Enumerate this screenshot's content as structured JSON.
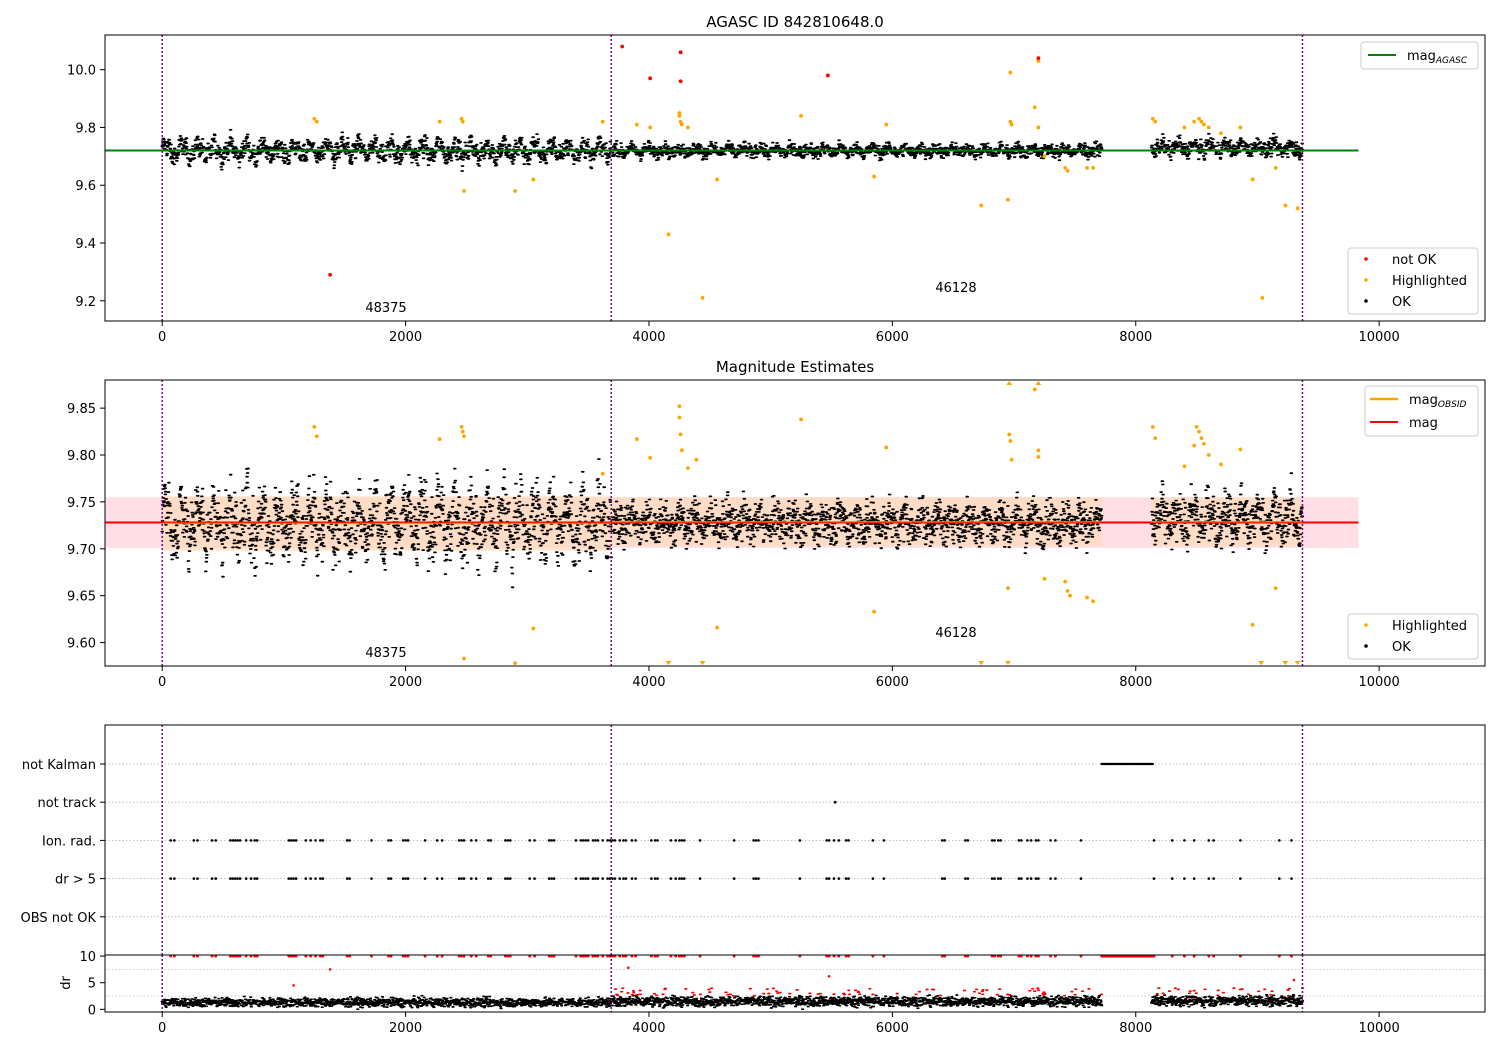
{
  "figure": {
    "x_ticks": [
      0,
      2000,
      4000,
      6000,
      8000,
      10000
    ],
    "x_range": [
      -470,
      10870
    ],
    "obsid_boundaries": [
      0,
      3690,
      9370
    ],
    "colors": {
      "ok": "#000000",
      "highlighted": "#ffa500",
      "not_ok": "#ff0000",
      "agasc_line": "#008000",
      "obsid_line": "#ffa500",
      "mag_line": "#ff0000",
      "obsid_band": "#ffdab9",
      "mag_band": "#ffc0cb",
      "boundary": "#800080"
    }
  },
  "chart_data": [
    {
      "type": "scatter",
      "title": "AGASC ID 842810648.0",
      "xlabel": "",
      "ylabel": "",
      "ylim": [
        9.13,
        10.12
      ],
      "y_ticks": [
        9.2,
        9.4,
        9.6,
        9.8,
        10.0
      ],
      "mag_agasc": 9.72,
      "mag_agasc_xrange": [
        -470,
        9830
      ],
      "obsid_labels": [
        {
          "text": "48375",
          "x": 1840,
          "y": 9.15
        },
        {
          "text": "46128",
          "x": 6550,
          "y": 9.22
        }
      ],
      "legends": [
        {
          "position": "top-right",
          "items": [
            {
              "label": "mag",
              "sub": "AGASC",
              "marker": "line",
              "color": "#008000"
            }
          ]
        },
        {
          "position": "bottom-right",
          "items": [
            {
              "label": "not OK",
              "marker": "dot",
              "color": "#ff0000"
            },
            {
              "label": "Highlighted",
              "marker": "dot",
              "color": "#ffa500"
            },
            {
              "label": "OK",
              "marker": "dot",
              "color": "#000000"
            }
          ]
        }
      ],
      "ok_segments": [
        {
          "x": [
            0,
            3690
          ],
          "mean": 9.72,
          "amp": 0.035,
          "spread": 0.03
        },
        {
          "x": [
            3700,
            7720
          ],
          "mean": 9.72,
          "amp": 0.015,
          "spread": 0.02
        },
        {
          "x": [
            8130,
            9370
          ],
          "mean": 9.73,
          "amp": 0.02,
          "spread": 0.025
        }
      ],
      "highlighted_points": [
        [
          1250,
          9.83
        ],
        [
          1270,
          9.82
        ],
        [
          2280,
          9.82
        ],
        [
          2460,
          9.83
        ],
        [
          2470,
          9.82
        ],
        [
          2480,
          9.58
        ],
        [
          2900,
          9.58
        ],
        [
          3050,
          9.62
        ],
        [
          3620,
          9.82
        ],
        [
          3900,
          9.81
        ],
        [
          4010,
          9.8
        ],
        [
          4160,
          9.43
        ],
        [
          4250,
          9.85
        ],
        [
          4250,
          9.84
        ],
        [
          4260,
          9.82
        ],
        [
          4270,
          9.81
        ],
        [
          4320,
          9.8
        ],
        [
          4440,
          9.21
        ],
        [
          4560,
          9.62
        ],
        [
          5250,
          9.84
        ],
        [
          5850,
          9.63
        ],
        [
          5950,
          9.81
        ],
        [
          6730,
          9.53
        ],
        [
          6950,
          9.55
        ],
        [
          6970,
          9.99
        ],
        [
          6970,
          9.82
        ],
        [
          6980,
          9.81
        ],
        [
          7170,
          9.87
        ],
        [
          7200,
          10.03
        ],
        [
          7200,
          9.8
        ],
        [
          7250,
          9.7
        ],
        [
          7420,
          9.66
        ],
        [
          7440,
          9.65
        ],
        [
          7600,
          9.66
        ],
        [
          7650,
          9.66
        ],
        [
          8140,
          9.83
        ],
        [
          8160,
          9.82
        ],
        [
          8400,
          9.8
        ],
        [
          8480,
          9.82
        ],
        [
          8520,
          9.83
        ],
        [
          8540,
          9.82
        ],
        [
          8560,
          9.81
        ],
        [
          8600,
          9.8
        ],
        [
          8700,
          9.78
        ],
        [
          8860,
          9.8
        ],
        [
          8960,
          9.62
        ],
        [
          9040,
          9.21
        ],
        [
          9150,
          9.66
        ],
        [
          9230,
          9.53
        ],
        [
          9330,
          9.52
        ]
      ],
      "not_ok_points": [
        [
          1380,
          9.29
        ],
        [
          3780,
          10.08
        ],
        [
          4010,
          9.97
        ],
        [
          4260,
          10.06
        ],
        [
          4260,
          9.96
        ],
        [
          5470,
          9.98
        ],
        [
          7200,
          10.04
        ]
      ]
    },
    {
      "type": "scatter",
      "title": "Magnitude Estimates",
      "xlabel": "",
      "ylabel": "",
      "ylim": [
        9.575,
        9.88
      ],
      "y_ticks": [
        9.6,
        9.65,
        9.7,
        9.75,
        9.8,
        9.85
      ],
      "mag": 9.728,
      "mag_band": [
        9.701,
        9.755
      ],
      "mag_xrange": [
        -470,
        9830
      ],
      "obsid_bands": [
        {
          "x": [
            0,
            3690
          ],
          "lo": 9.698,
          "hi": 9.756
        },
        {
          "x": [
            3690,
            7720
          ],
          "lo": 9.703,
          "hi": 9.755
        },
        {
          "x": [
            8130,
            9370
          ],
          "lo": 9.703,
          "hi": 9.755
        }
      ],
      "obsid_labels": [
        {
          "text": "48375",
          "x": 1840,
          "y": 9.585
        },
        {
          "text": "46128",
          "x": 6550,
          "y": 9.608
        }
      ],
      "legends": [
        {
          "position": "top-right",
          "items": [
            {
              "label": "mag",
              "sub": "OBSID",
              "marker": "line",
              "color": "#ffa500"
            },
            {
              "label": "mag",
              "marker": "line",
              "color": "#ff0000"
            }
          ]
        },
        {
          "position": "bottom-right",
          "items": [
            {
              "label": "Highlighted",
              "marker": "dot",
              "color": "#ffa500"
            },
            {
              "label": "OK",
              "marker": "dot",
              "color": "#000000"
            }
          ]
        }
      ],
      "ok_segments": [
        {
          "x": [
            0,
            3690
          ],
          "mean": 9.728,
          "amp": 0.035,
          "spread": 0.028
        },
        {
          "x": [
            3700,
            7720
          ],
          "mean": 9.728,
          "amp": 0.012,
          "spread": 0.02
        },
        {
          "x": [
            8130,
            9370
          ],
          "mean": 9.732,
          "amp": 0.02,
          "spread": 0.022
        }
      ],
      "highlighted_points": [
        [
          1250,
          9.83
        ],
        [
          1270,
          9.82
        ],
        [
          2280,
          9.817
        ],
        [
          2460,
          9.83
        ],
        [
          2470,
          9.825
        ],
        [
          2480,
          9.82
        ],
        [
          2480,
          9.583
        ],
        [
          2900,
          9.578
        ],
        [
          3050,
          9.615
        ],
        [
          3620,
          9.78
        ],
        [
          3900,
          9.817
        ],
        [
          4010,
          9.797
        ],
        [
          4250,
          9.852
        ],
        [
          4250,
          9.84
        ],
        [
          4260,
          9.822
        ],
        [
          4270,
          9.805
        ],
        [
          4320,
          9.786
        ],
        [
          4390,
          9.795
        ],
        [
          4560,
          9.616
        ],
        [
          5250,
          9.838
        ],
        [
          5850,
          9.633
        ],
        [
          5950,
          9.808
        ],
        [
          6950,
          9.658
        ],
        [
          6960,
          9.822
        ],
        [
          6970,
          9.815
        ],
        [
          6980,
          9.795
        ],
        [
          7170,
          9.87
        ],
        [
          7200,
          9.805
        ],
        [
          7200,
          9.798
        ],
        [
          7250,
          9.668
        ],
        [
          7420,
          9.665
        ],
        [
          7440,
          9.655
        ],
        [
          7460,
          9.65
        ],
        [
          7600,
          9.648
        ],
        [
          7650,
          9.644
        ],
        [
          8140,
          9.83
        ],
        [
          8160,
          9.818
        ],
        [
          8400,
          9.788
        ],
        [
          8480,
          9.81
        ],
        [
          8500,
          9.83
        ],
        [
          8520,
          9.825
        ],
        [
          8540,
          9.818
        ],
        [
          8560,
          9.812
        ],
        [
          8600,
          9.8
        ],
        [
          8700,
          9.79
        ],
        [
          8860,
          9.806
        ],
        [
          8960,
          9.619
        ],
        [
          9150,
          9.658
        ]
      ],
      "offscale_low_x": [
        4160,
        4440,
        6730,
        6950,
        9030,
        9230,
        9330
      ],
      "offscale_high_x": [
        6960,
        7200
      ]
    },
    {
      "type": "scatter",
      "title": "",
      "xlabel": "",
      "ylabel": "",
      "categories": [
        "not Kalman",
        "not track",
        "Ion. rad.",
        "dr > 5",
        "OBS not OK"
      ],
      "flag_series": [
        {
          "label": "not Kalman",
          "ranges": [
            [
              7720,
              8140
            ]
          ],
          "points": []
        },
        {
          "label": "not track",
          "ranges": [],
          "points": [
            5530
          ]
        },
        {
          "label": "Ion. rad.",
          "ranges": [],
          "points": [
            70,
            100,
            260,
            290,
            410,
            440,
            560,
            580,
            600,
            620,
            640,
            690,
            730,
            760,
            780,
            1040,
            1060,
            1080,
            1100,
            1180,
            1220,
            1260,
            1300,
            1320,
            1520,
            1540,
            1720,
            1860,
            1880,
            1980,
            2000,
            2020,
            2160,
            2260,
            2300,
            2440,
            2460,
            2480,
            2540,
            2580,
            2680,
            2700,
            2820,
            2840,
            2860,
            3020,
            3060,
            3180,
            3200,
            3220,
            3400,
            3440,
            3460,
            3480,
            3500,
            3540,
            3560,
            3580,
            3620,
            3660,
            3680,
            3700,
            3720,
            3760,
            3790,
            3810,
            3860,
            3890,
            4020,
            4050,
            4070,
            4180,
            4220,
            4250,
            4270,
            4290,
            4420,
            4700,
            4860,
            4880,
            4900,
            5240,
            5460,
            5480,
            5520,
            5560,
            5620,
            5640,
            5840,
            5930,
            6410,
            6430,
            6600,
            6620,
            6820,
            6840,
            6870,
            6890,
            7040,
            7060,
            7110,
            7140,
            7180,
            7200,
            7300,
            7340,
            7550,
            8150,
            8300,
            8400,
            8480,
            8600,
            8640,
            8860,
            9180,
            9280
          ]
        },
        {
          "label": "dr > 5",
          "ranges": [],
          "points": [
            70,
            100,
            260,
            290,
            410,
            440,
            560,
            580,
            600,
            620,
            640,
            690,
            730,
            760,
            780,
            1040,
            1060,
            1080,
            1100,
            1180,
            1220,
            1260,
            1300,
            1320,
            1520,
            1540,
            1720,
            1860,
            1880,
            1980,
            2000,
            2020,
            2160,
            2260,
            2300,
            2440,
            2460,
            2480,
            2540,
            2580,
            2680,
            2700,
            2820,
            2840,
            2860,
            3020,
            3060,
            3180,
            3200,
            3220,
            3400,
            3440,
            3460,
            3480,
            3500,
            3540,
            3560,
            3580,
            3620,
            3660,
            3680,
            3700,
            3720,
            3760,
            3790,
            3810,
            3860,
            3890,
            4020,
            4050,
            4070,
            4180,
            4220,
            4250,
            4270,
            4290,
            4420,
            4700,
            4860,
            4880,
            4900,
            5240,
            5460,
            5480,
            5520,
            5560,
            5620,
            5640,
            5840,
            5930,
            6410,
            6430,
            6600,
            6620,
            6820,
            6840,
            6870,
            6890,
            7040,
            7060,
            7110,
            7140,
            7180,
            7200,
            7300,
            7340,
            7550,
            8150,
            8300,
            8400,
            8480,
            8600,
            8640,
            8860,
            9180,
            9280
          ]
        },
        {
          "label": "OBS not OK",
          "ranges": [],
          "points": []
        }
      ]
    },
    {
      "type": "scatter",
      "title": "",
      "xlabel": "",
      "ylabel": "dr",
      "ylim": [
        -0.5,
        10.2
      ],
      "y_ticks": [
        0,
        5,
        10
      ],
      "dr_segments": [
        {
          "x": [
            0,
            3690
          ],
          "mean": 1.3,
          "spread": 0.7
        },
        {
          "x": [
            3700,
            7720
          ],
          "mean": 1.5,
          "spread": 0.8
        },
        {
          "x": [
            8130,
            9370
          ],
          "mean": 1.6,
          "spread": 0.8
        }
      ],
      "dr_capped_x_ranges": [
        [
          7720,
          8140
        ]
      ],
      "dr_outliers": [
        [
          1380,
          7.5
        ],
        [
          1080,
          4.5
        ],
        [
          5480,
          6.2
        ],
        [
          3830,
          7.8
        ],
        [
          9300,
          5.5
        ]
      ]
    }
  ]
}
